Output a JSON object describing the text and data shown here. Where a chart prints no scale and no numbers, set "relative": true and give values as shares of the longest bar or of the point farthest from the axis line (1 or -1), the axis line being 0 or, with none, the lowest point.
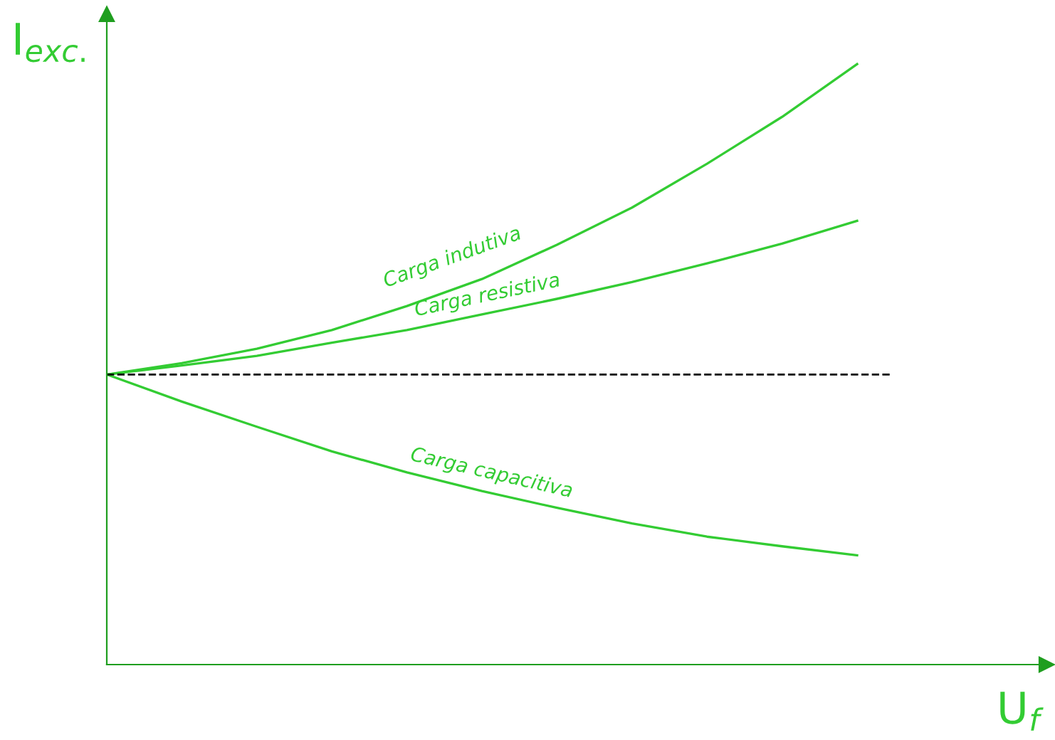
{
  "chart_data": {
    "type": "line",
    "relative": true,
    "xlabel": "U$_{f}$",
    "ylabel": "I$_{exc.}$",
    "categories": [
      null,
      null,
      null,
      null,
      null,
      null,
      null,
      null,
      null,
      null,
      null
    ],
    "series": [
      {
        "name": "Carga indutiva",
        "color": "#33cc33",
        "values": [
          0.483,
          0.502,
          0.526,
          0.557,
          0.597,
          0.642,
          0.699,
          0.761,
          0.834,
          0.912,
          1
        ]
      },
      {
        "name": "Carga resistiva",
        "color": "#33cc33",
        "values": [
          0.483,
          0.498,
          0.514,
          0.536,
          0.557,
          0.583,
          0.609,
          0.637,
          0.668,
          0.701,
          0.739
        ]
      },
      {
        "name": "Carga capacitiva",
        "color": "#33cc33",
        "values": [
          0.483,
          0.438,
          0.396,
          0.355,
          0.32,
          0.289,
          0.261,
          0.235,
          0.213,
          0.197,
          0.182
        ]
      }
    ],
    "ref_lines": [
      {
        "axis": "y",
        "value": 0.483,
        "color": "#000000",
        "line_style": "dashed"
      }
    ],
    "grid": false,
    "marker": "none",
    "line_style": "solid"
  }
}
